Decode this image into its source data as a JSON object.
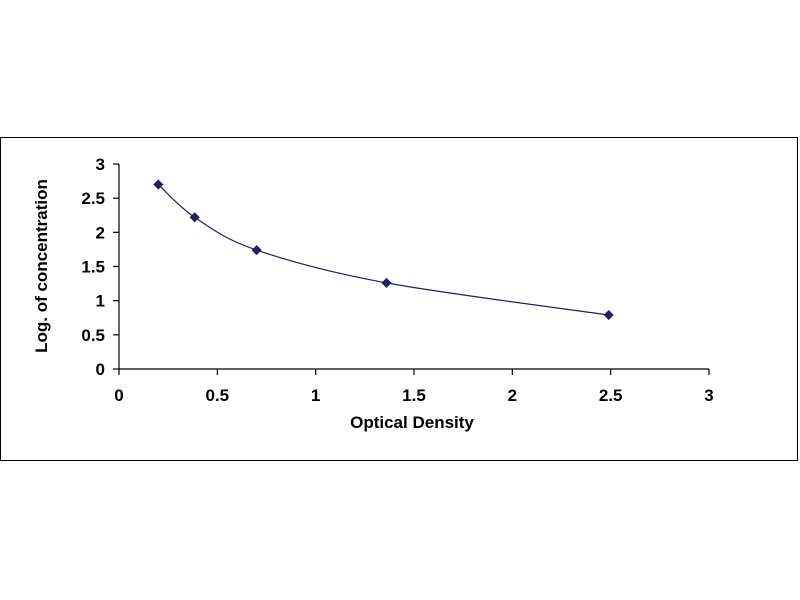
{
  "chart_data": {
    "type": "scatter",
    "title": "",
    "xlabel": "Optical Density",
    "ylabel": "Log. of concentration",
    "xlim": [
      0,
      3
    ],
    "ylim": [
      0,
      3
    ],
    "x_ticks": [
      0,
      0.5,
      1,
      1.5,
      2,
      2.5,
      3
    ],
    "y_ticks": [
      0,
      0.5,
      1,
      1.5,
      2,
      2.5,
      3
    ],
    "x_tick_labels": [
      "0",
      "0.5",
      "1",
      "1.5",
      "2",
      "2.5",
      "3"
    ],
    "y_tick_labels": [
      "0",
      "0.5",
      "1",
      "1.5",
      "2",
      "2.5",
      "3"
    ],
    "grid": false,
    "legend": "none",
    "marker_color": "#1f1f6e",
    "line_color": "#1f1f6e",
    "series": [
      {
        "marker": "diamond",
        "trendline": "smooth",
        "x": [
          0.2,
          0.385,
          0.7,
          1.36,
          2.49
        ],
        "y": [
          2.7,
          2.22,
          1.74,
          1.26,
          0.79
        ]
      }
    ]
  }
}
